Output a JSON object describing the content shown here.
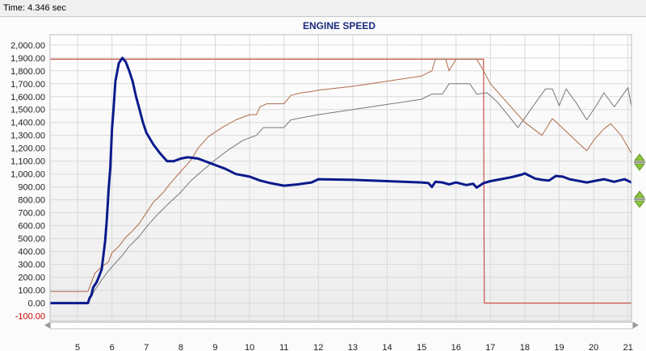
{
  "header": {
    "time_label": "Time: 4.346 sec"
  },
  "colors": {
    "plot_bg_top": "#ffffff",
    "plot_bg_bottom": "#ececec",
    "grid": "#d9d9d9",
    "title": "#1a2a7a",
    "engine_speed": "#0b1a8c",
    "brown_line": "#b06a4a",
    "gray_line": "#777777",
    "red_line": "#c8544a",
    "button_green": "#8cc63f"
  },
  "controls": {
    "right_buttons_top": "green-up-down-arrows-icon",
    "right_buttons_bottom": "green-up-down-arrows-icon"
  },
  "chart_data": {
    "type": "line",
    "title": "ENGINE SPEED",
    "xlim": [
      4.2,
      21.1
    ],
    "ylim": [
      -140,
      2080
    ],
    "x_ticks": [
      "5",
      "6",
      "7",
      "8",
      "9",
      "10",
      "11",
      "12",
      "13",
      "14",
      "15",
      "16",
      "17",
      "18",
      "19",
      "20",
      "21"
    ],
    "y_ticks": [
      "-100.00",
      "0.00",
      "100.00",
      "200.00",
      "300.00",
      "400.00",
      "500.00",
      "600.00",
      "700.00",
      "800.00",
      "900.00",
      "1,000.00",
      "1,100.00",
      "1,200.00",
      "1,300.00",
      "1,400.00",
      "1,500.00",
      "1,600.00",
      "1,700.00",
      "1,800.00",
      "1,900.00",
      "2,000.00"
    ],
    "grid": true,
    "series": [
      {
        "id": "engine_speed",
        "color": "#0b1a8c",
        "points": [
          [
            4.2,
            0
          ],
          [
            5.3,
            0
          ],
          [
            5.35,
            40
          ],
          [
            5.4,
            60
          ],
          [
            5.45,
            120
          ],
          [
            5.55,
            160
          ],
          [
            5.6,
            190
          ],
          [
            5.7,
            260
          ],
          [
            5.8,
            480
          ],
          [
            5.85,
            650
          ],
          [
            5.9,
            870
          ],
          [
            5.95,
            1050
          ],
          [
            6.0,
            1350
          ],
          [
            6.05,
            1520
          ],
          [
            6.1,
            1720
          ],
          [
            6.2,
            1860
          ],
          [
            6.3,
            1900
          ],
          [
            6.4,
            1870
          ],
          [
            6.5,
            1800
          ],
          [
            6.6,
            1720
          ],
          [
            6.7,
            1600
          ],
          [
            6.8,
            1500
          ],
          [
            6.9,
            1400
          ],
          [
            7.0,
            1320
          ],
          [
            7.2,
            1230
          ],
          [
            7.4,
            1160
          ],
          [
            7.6,
            1100
          ],
          [
            7.8,
            1100
          ],
          [
            8.0,
            1120
          ],
          [
            8.2,
            1130
          ],
          [
            8.5,
            1120
          ],
          [
            8.8,
            1090
          ],
          [
            9.0,
            1070
          ],
          [
            9.3,
            1040
          ],
          [
            9.6,
            1000
          ],
          [
            10.0,
            980
          ],
          [
            10.3,
            950
          ],
          [
            10.6,
            930
          ],
          [
            11.0,
            910
          ],
          [
            11.4,
            920
          ],
          [
            11.8,
            935
          ],
          [
            12.0,
            960
          ],
          [
            13.0,
            955
          ],
          [
            14.0,
            945
          ],
          [
            15.0,
            935
          ],
          [
            15.2,
            930
          ],
          [
            15.3,
            900
          ],
          [
            15.4,
            940
          ],
          [
            15.6,
            935
          ],
          [
            15.8,
            920
          ],
          [
            16.0,
            935
          ],
          [
            16.3,
            915
          ],
          [
            16.5,
            925
          ],
          [
            16.6,
            895
          ],
          [
            16.8,
            930
          ],
          [
            17.0,
            945
          ],
          [
            17.3,
            960
          ],
          [
            17.6,
            975
          ],
          [
            17.9,
            995
          ],
          [
            18.0,
            1005
          ],
          [
            18.3,
            965
          ],
          [
            18.5,
            955
          ],
          [
            18.7,
            950
          ],
          [
            18.9,
            985
          ],
          [
            19.1,
            980
          ],
          [
            19.3,
            960
          ],
          [
            19.5,
            950
          ],
          [
            19.8,
            935
          ],
          [
            20.0,
            945
          ],
          [
            20.3,
            960
          ],
          [
            20.6,
            940
          ],
          [
            20.9,
            960
          ],
          [
            21.1,
            935
          ]
        ]
      },
      {
        "id": "brown_line",
        "color": "#b06a4a",
        "points": [
          [
            4.2,
            90
          ],
          [
            5.3,
            90
          ],
          [
            5.5,
            230
          ],
          [
            5.7,
            280
          ],
          [
            5.9,
            320
          ],
          [
            6.0,
            390
          ],
          [
            6.2,
            440
          ],
          [
            6.4,
            510
          ],
          [
            6.6,
            560
          ],
          [
            6.8,
            620
          ],
          [
            7.0,
            700
          ],
          [
            7.2,
            780
          ],
          [
            7.5,
            860
          ],
          [
            7.7,
            930
          ],
          [
            8.0,
            1020
          ],
          [
            8.3,
            1110
          ],
          [
            8.5,
            1200
          ],
          [
            8.8,
            1290
          ],
          [
            9.2,
            1360
          ],
          [
            9.6,
            1420
          ],
          [
            10.0,
            1460
          ],
          [
            10.2,
            1460
          ],
          [
            10.3,
            1520
          ],
          [
            10.5,
            1545
          ],
          [
            11.0,
            1545
          ],
          [
            11.2,
            1610
          ],
          [
            11.5,
            1630
          ],
          [
            11.8,
            1640
          ],
          [
            12.0,
            1650
          ],
          [
            13.0,
            1680
          ],
          [
            14.0,
            1720
          ],
          [
            15.0,
            1760
          ],
          [
            15.3,
            1800
          ],
          [
            15.4,
            1890
          ],
          [
            15.7,
            1890
          ],
          [
            15.8,
            1800
          ],
          [
            16.0,
            1890
          ],
          [
            16.6,
            1890
          ],
          [
            16.8,
            1800
          ],
          [
            17.0,
            1700
          ],
          [
            17.5,
            1550
          ],
          [
            18.0,
            1400
          ],
          [
            18.5,
            1300
          ],
          [
            18.8,
            1430
          ],
          [
            19.0,
            1380
          ],
          [
            19.4,
            1280
          ],
          [
            19.8,
            1180
          ],
          [
            20.0,
            1260
          ],
          [
            20.3,
            1350
          ],
          [
            20.5,
            1390
          ],
          [
            20.8,
            1300
          ],
          [
            21.1,
            1160
          ]
        ]
      },
      {
        "id": "gray_line",
        "color": "#777777",
        "points": [
          [
            4.2,
            0
          ],
          [
            5.3,
            0
          ],
          [
            5.5,
            100
          ],
          [
            5.7,
            180
          ],
          [
            5.9,
            250
          ],
          [
            6.1,
            310
          ],
          [
            6.3,
            370
          ],
          [
            6.5,
            440
          ],
          [
            6.8,
            520
          ],
          [
            7.0,
            590
          ],
          [
            7.3,
            680
          ],
          [
            7.6,
            760
          ],
          [
            8.0,
            860
          ],
          [
            8.3,
            950
          ],
          [
            8.6,
            1020
          ],
          [
            9.0,
            1110
          ],
          [
            9.4,
            1190
          ],
          [
            9.8,
            1260
          ],
          [
            10.2,
            1300
          ],
          [
            10.4,
            1360
          ],
          [
            11.0,
            1360
          ],
          [
            11.2,
            1420
          ],
          [
            11.6,
            1440
          ],
          [
            12.0,
            1460
          ],
          [
            13.0,
            1500
          ],
          [
            14.0,
            1540
          ],
          [
            15.0,
            1580
          ],
          [
            15.3,
            1620
          ],
          [
            15.6,
            1620
          ],
          [
            15.8,
            1700
          ],
          [
            16.4,
            1700
          ],
          [
            16.6,
            1620
          ],
          [
            16.9,
            1630
          ],
          [
            17.2,
            1560
          ],
          [
            17.5,
            1460
          ],
          [
            17.8,
            1360
          ],
          [
            18.2,
            1510
          ],
          [
            18.6,
            1660
          ],
          [
            18.8,
            1660
          ],
          [
            19.0,
            1530
          ],
          [
            19.2,
            1660
          ],
          [
            19.5,
            1550
          ],
          [
            19.8,
            1420
          ],
          [
            20.1,
            1540
          ],
          [
            20.3,
            1630
          ],
          [
            20.6,
            1520
          ],
          [
            21.0,
            1670
          ],
          [
            21.1,
            1520
          ]
        ]
      },
      {
        "id": "red_line",
        "color": "#c8544a",
        "points": [
          [
            4.2,
            1890
          ],
          [
            16.8,
            1890
          ],
          [
            16.82,
            0
          ],
          [
            21.1,
            0
          ]
        ]
      }
    ]
  }
}
